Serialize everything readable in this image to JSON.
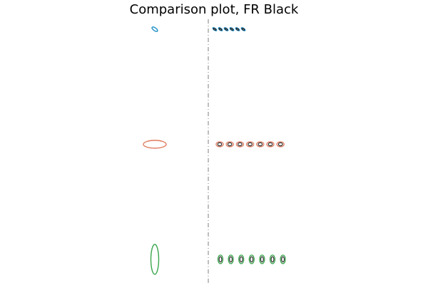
{
  "chart_data": {
    "type": "scatter",
    "title": "Comparison plot, FR Black",
    "xlabel": "",
    "ylabel": "",
    "axes_visible": false,
    "grid": false,
    "center_line": {
      "style": "dash-dot",
      "color": "#7f7f7f"
    },
    "rows": [
      {
        "row": 1,
        "color": "#1f8fc8",
        "inner_color": "#1a1a1a",
        "reference": {
          "shape": "tilted-ellipse",
          "angle_deg": -55,
          "rx": 2.0,
          "ry": 4.6
        },
        "samples": {
          "count": 6,
          "shape": "tilted-ellipse",
          "angle_deg": -55,
          "rx": 1.5,
          "ry": 3.2
        }
      },
      {
        "row": 2,
        "color": "#e07a5f",
        "inner_color": "#1a1a1a",
        "reference": {
          "shape": "ellipse",
          "angle_deg": 0,
          "rx": 16,
          "ry": 5.5
        },
        "samples": {
          "count": 7,
          "shape": "ellipse",
          "angle_deg": 0,
          "rx": 5,
          "ry": 3.5
        }
      },
      {
        "row": 3,
        "color": "#3aa64c",
        "inner_color": "#1a1a1a",
        "reference": {
          "shape": "ellipse",
          "angle_deg": 0,
          "rx": 5.5,
          "ry": 21
        },
        "samples": {
          "count": 7,
          "shape": "ellipse",
          "angle_deg": 0,
          "rx": 3.5,
          "ry": 6
        }
      }
    ]
  }
}
